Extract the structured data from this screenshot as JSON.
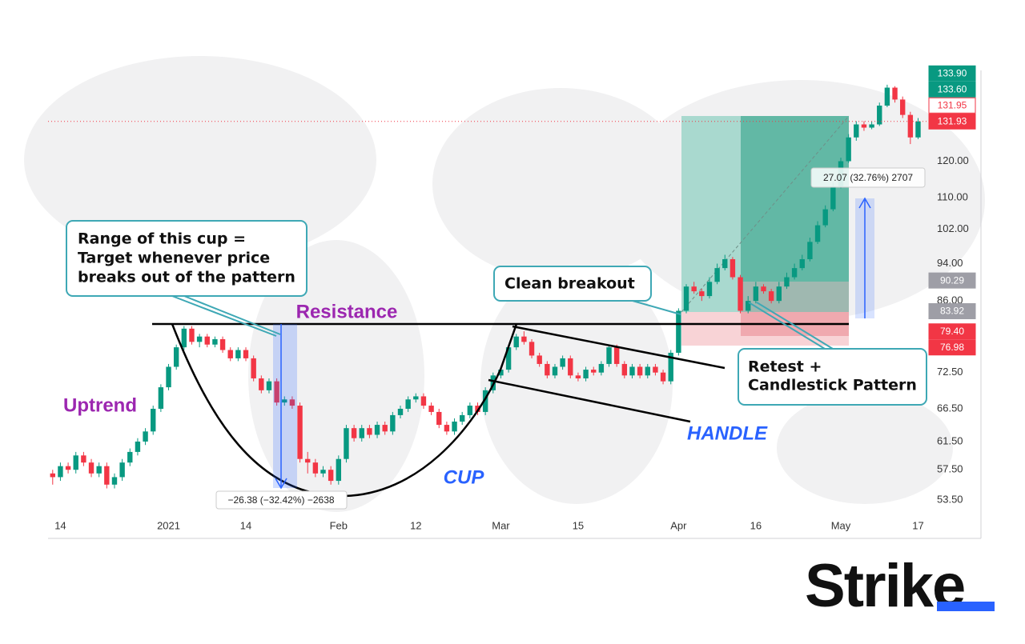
{
  "chart_data": {
    "type": "candlestick",
    "up_color": "#089981",
    "down_color": "#f23645",
    "log_scale": true,
    "grid": false,
    "xlim": [
      -0.6,
      113.4
    ],
    "ylim": [
      51.5,
      149
    ],
    "yticks": [
      {
        "value": 53.5,
        "label": "53.50"
      },
      {
        "value": 57.5,
        "label": "57.50"
      },
      {
        "value": 61.5,
        "label": "61.50"
      },
      {
        "value": 66.5,
        "label": "66.50"
      },
      {
        "value": 72.5,
        "label": "72.50"
      },
      {
        "value": 86,
        "label": "86.00"
      },
      {
        "value": 94,
        "label": "94.00"
      },
      {
        "value": 102,
        "label": "102.00"
      },
      {
        "value": 110,
        "label": "110.00"
      },
      {
        "value": 120,
        "label": "120.00"
      }
    ],
    "xticks": [
      {
        "value": 1,
        "label": "14"
      },
      {
        "value": 15,
        "label": "2021"
      },
      {
        "value": 25,
        "label": "14"
      },
      {
        "value": 37,
        "label": "Feb"
      },
      {
        "value": 47,
        "label": "12"
      },
      {
        "value": 58,
        "label": "Mar"
      },
      {
        "value": 68,
        "label": "15"
      },
      {
        "value": 81,
        "label": "Apr"
      },
      {
        "value": 91,
        "label": "16"
      },
      {
        "value": 102,
        "label": "May"
      },
      {
        "value": 112,
        "label": "17"
      }
    ],
    "price_labels": [
      {
        "value": 133.9,
        "label": "133.90",
        "color": "#089981"
      },
      {
        "value": 133.6,
        "label": "133.60",
        "color": "#089981"
      },
      {
        "value": 131.95,
        "label": "131.95",
        "color": "#f23645",
        "outline": true
      },
      {
        "value": 131.93,
        "label": "131.93",
        "color": "#f23645",
        "last_price_line": true
      },
      {
        "value": 90.29,
        "label": "90.29",
        "color": "#9e9ea6"
      },
      {
        "value": 83.92,
        "label": "83.92",
        "color": "#9e9ea6"
      },
      {
        "value": 79.4,
        "label": "79.40",
        "color": "#f23645"
      },
      {
        "value": 76.98,
        "label": "76.98",
        "color": "#f23645"
      }
    ],
    "ohlc": [
      [
        57,
        57.5,
        55.5,
        56.5
      ],
      [
        56.5,
        58.5,
        56,
        58
      ],
      [
        58,
        58.5,
        57,
        57.5
      ],
      [
        57.5,
        60,
        57,
        59.5
      ],
      [
        59.5,
        60,
        58,
        58.5
      ],
      [
        58.5,
        59,
        56.5,
        57
      ],
      [
        57,
        58.5,
        56.5,
        58
      ],
      [
        58,
        58.5,
        55,
        55.5
      ],
      [
        55.5,
        57,
        55,
        56.5
      ],
      [
        56.5,
        59,
        56,
        58.5
      ],
      [
        58.5,
        60.5,
        58,
        60
      ],
      [
        60,
        62,
        59.5,
        61.5
      ],
      [
        61.5,
        63.5,
        61,
        63
      ],
      [
        63,
        67,
        62.5,
        66.5
      ],
      [
        66.5,
        70.5,
        66,
        70
      ],
      [
        70,
        74,
        69.5,
        73.5
      ],
      [
        73.5,
        77.5,
        73,
        77
      ],
      [
        77,
        81,
        76.5,
        80.5
      ],
      [
        80.5,
        81,
        77.5,
        78
      ],
      [
        78,
        79.5,
        77,
        79
      ],
      [
        79,
        79.5,
        77,
        77.5
      ],
      [
        77.5,
        79,
        77,
        78.5
      ],
      [
        78.5,
        79,
        76,
        76.5
      ],
      [
        76.5,
        77,
        74.5,
        75
      ],
      [
        75,
        77,
        74.5,
        76.5
      ],
      [
        76.5,
        77,
        74.5,
        75
      ],
      [
        75,
        75.5,
        71,
        71.5
      ],
      [
        71.5,
        72,
        69,
        69.5
      ],
      [
        69.5,
        71.5,
        69,
        71
      ],
      [
        71,
        71.5,
        67,
        67.5
      ],
      [
        67.5,
        68.5,
        67,
        68
      ],
      [
        68,
        68.5,
        66.5,
        67
      ],
      [
        67,
        67.5,
        58.5,
        59
      ],
      [
        59,
        60,
        57,
        58.5
      ],
      [
        58.5,
        59,
        56.5,
        57
      ],
      [
        57,
        58,
        56.5,
        57.5
      ],
      [
        57.5,
        58,
        55.5,
        56
      ],
      [
        56,
        59.5,
        55.5,
        59
      ],
      [
        59,
        64,
        58.5,
        63.5
      ],
      [
        63.5,
        64,
        61.5,
        62
      ],
      [
        62,
        64,
        61.5,
        63.5
      ],
      [
        63.5,
        64,
        62,
        62.5
      ],
      [
        62.5,
        64.5,
        62,
        64
      ],
      [
        64,
        64.5,
        62.5,
        63
      ],
      [
        63,
        66,
        62.5,
        65.5
      ],
      [
        65.5,
        67,
        65,
        66.5
      ],
      [
        66.5,
        68.5,
        66,
        68
      ],
      [
        68,
        69,
        67.5,
        68.5
      ],
      [
        68.5,
        69,
        66.5,
        67
      ],
      [
        67,
        67.5,
        65.5,
        66
      ],
      [
        66,
        66.5,
        63.5,
        64
      ],
      [
        64,
        64.5,
        62.5,
        63
      ],
      [
        63,
        65,
        62.5,
        64.5
      ],
      [
        64.5,
        66,
        64,
        65.5
      ],
      [
        65.5,
        67.5,
        65,
        67
      ],
      [
        67,
        67.5,
        65.5,
        66
      ],
      [
        66,
        70,
        65.5,
        69.5
      ],
      [
        69.5,
        72.5,
        69,
        72
      ],
      [
        72,
        73.5,
        71.5,
        73
      ],
      [
        73,
        77.5,
        72.5,
        77
      ],
      [
        77,
        79.5,
        76.5,
        79
      ],
      [
        79,
        80,
        77.5,
        78
      ],
      [
        78,
        78.5,
        75,
        75.5
      ],
      [
        75.5,
        76,
        73.5,
        74
      ],
      [
        74,
        74.5,
        71.5,
        72
      ],
      [
        72,
        74,
        71.5,
        73.5
      ],
      [
        73.5,
        75.5,
        73,
        75
      ],
      [
        75,
        75.5,
        71.5,
        72
      ],
      [
        72,
        72.5,
        71,
        71.5
      ],
      [
        71.5,
        73.5,
        71,
        73
      ],
      [
        73,
        73.5,
        72,
        72.5
      ],
      [
        72.5,
        74.5,
        72,
        74
      ],
      [
        74,
        77.5,
        73.5,
        77
      ],
      [
        77,
        77.5,
        73.5,
        74
      ],
      [
        74,
        74.5,
        71.5,
        72
      ],
      [
        72,
        74,
        71.5,
        73.5
      ],
      [
        73.5,
        74,
        71.5,
        72
      ],
      [
        72,
        74,
        71.5,
        73.5
      ],
      [
        73.5,
        74,
        72,
        72.5
      ],
      [
        72.5,
        73,
        70.5,
        71
      ],
      [
        71,
        76.5,
        70.5,
        76
      ],
      [
        76,
        84.5,
        75.5,
        84
      ],
      [
        84,
        89.5,
        83.5,
        89
      ],
      [
        89,
        90,
        87.5,
        88
      ],
      [
        88,
        88.5,
        86,
        87
      ],
      [
        87,
        91,
        86.5,
        90
      ],
      [
        90,
        94,
        89.5,
        93
      ],
      [
        93,
        96,
        92.5,
        95
      ],
      [
        95,
        95.5,
        90.5,
        91
      ],
      [
        91,
        91.5,
        83.5,
        84
      ],
      [
        84,
        87,
        83.5,
        86
      ],
      [
        86,
        90,
        85.5,
        89
      ],
      [
        89,
        89.5,
        87.5,
        88
      ],
      [
        88,
        88.5,
        85.5,
        86
      ],
      [
        86,
        90,
        85.5,
        89
      ],
      [
        89,
        92,
        88.5,
        91
      ],
      [
        91,
        94,
        90.5,
        93
      ],
      [
        93,
        96,
        92.5,
        95
      ],
      [
        95,
        100,
        94.5,
        99
      ],
      [
        99,
        104,
        98.5,
        103
      ],
      [
        103,
        108,
        102.5,
        107
      ],
      [
        107,
        114,
        106.5,
        113
      ],
      [
        113,
        121,
        112.5,
        120
      ],
      [
        120,
        128,
        119.5,
        127
      ],
      [
        127,
        132,
        126,
        131
      ],
      [
        131,
        132,
        129,
        130
      ],
      [
        130,
        132,
        129.5,
        131
      ],
      [
        131,
        138,
        130.5,
        137
      ],
      [
        137,
        144,
        136.5,
        143
      ],
      [
        143,
        143.5,
        138,
        139
      ],
      [
        139,
        140,
        133,
        134
      ],
      [
        134,
        135,
        125,
        127
      ],
      [
        127,
        133,
        126.5,
        131.93
      ]
    ],
    "annotations": {
      "range_note": [
        "Range of this cup =",
        "Target whenever price",
        "breaks out of the pattern"
      ],
      "resistance": "Resistance",
      "uptrend": "Uptrend",
      "cup": "CUP",
      "handle": "HANDLE",
      "clean_breakout": "Clean breakout",
      "retest": [
        "Retest +",
        "Candlestick Pattern"
      ],
      "cup_measure": "−26.38 (−32.42%) −2638",
      "target_measure": "27.07 (32.76%) 2707"
    },
    "logo": "Strike"
  }
}
